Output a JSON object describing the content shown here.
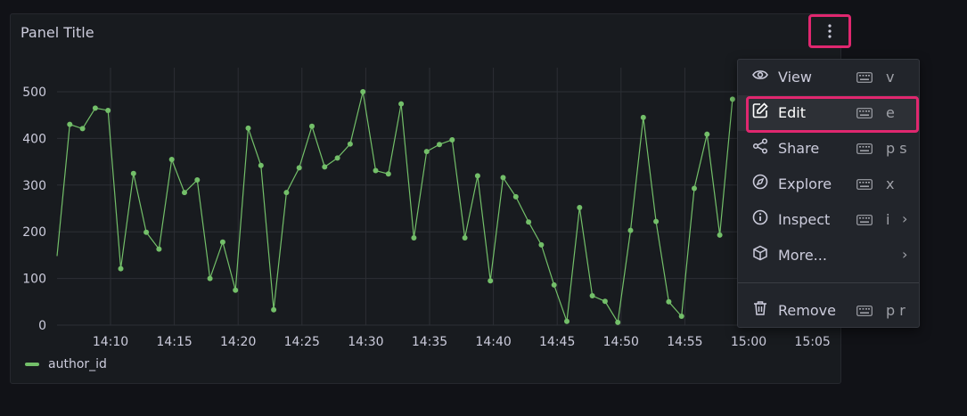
{
  "panel": {
    "title": "Panel Title",
    "menu_button_icon": "kebab-vertical-icon"
  },
  "chart_data": {
    "type": "line",
    "x_tick_labels": [
      "14:10",
      "14:15",
      "14:20",
      "14:25",
      "14:30",
      "14:35",
      "14:40",
      "14:45",
      "14:50",
      "14:55",
      "15:00",
      "15:05"
    ],
    "y_tick_labels": [
      "0",
      "100",
      "200",
      "300",
      "400",
      "500"
    ],
    "ylim": [
      0,
      500
    ],
    "grid": true,
    "legend_placement": "bottom-left",
    "series": [
      {
        "name": "author_id",
        "color": "#73bf69",
        "values": [
          148,
          430,
          421,
          465,
          460,
          121,
          325,
          199,
          163,
          355,
          284,
          311,
          100,
          178,
          75,
          422,
          342,
          33,
          284,
          337,
          426,
          339,
          358,
          388,
          500,
          331,
          324,
          474,
          187,
          372,
          387,
          397,
          187,
          320,
          95,
          316,
          275,
          221,
          172,
          86,
          8,
          252,
          63,
          51,
          6,
          203,
          445,
          222,
          50,
          19,
          293,
          409,
          193,
          484
        ]
      }
    ]
  },
  "menu": {
    "items": [
      {
        "label": "View",
        "icon": "eye-icon",
        "key": "v"
      },
      {
        "label": "Edit",
        "icon": "edit-icon",
        "key": "e"
      },
      {
        "label": "Share",
        "icon": "share-icon",
        "key": "p s"
      },
      {
        "label": "Explore",
        "icon": "compass-icon",
        "key": "x"
      },
      {
        "label": "Inspect",
        "icon": "info-circle-icon",
        "key": "i",
        "submenu": true
      },
      {
        "label": "More...",
        "icon": "cube-icon",
        "key": "",
        "submenu": true
      },
      {
        "label": "Remove",
        "icon": "trash-icon",
        "key": "p r"
      }
    ]
  }
}
